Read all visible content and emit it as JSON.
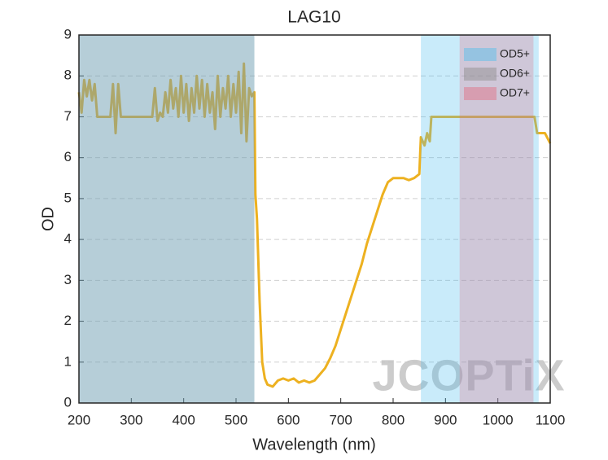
{
  "chart_data": {
    "type": "line",
    "title": "LAG10",
    "xlabel": "Wavelength (nm)",
    "ylabel": "OD",
    "xlim": [
      200,
      1100
    ],
    "xticks": [
      200,
      300,
      400,
      500,
      600,
      700,
      800,
      900,
      1000,
      1100
    ],
    "ylim": [
      0,
      9
    ],
    "yticks": [
      0,
      1,
      2,
      3,
      4,
      5,
      6,
      7,
      8,
      9
    ],
    "grid": true,
    "legend": "upper right",
    "watermark": "JCOPTiX",
    "bands": [
      {
        "name": "OD5+",
        "color": "#4dbeee",
        "ranges": [
          [
            200,
            535
          ],
          [
            853,
            1078
          ]
        ]
      },
      {
        "name": "OD6+",
        "color": "#8a8a8a",
        "ranges": [
          [
            200,
            535
          ]
        ]
      },
      {
        "name": "OD7+",
        "color": "#e06a80",
        "ranges": [
          [
            927,
            1068
          ]
        ]
      }
    ],
    "x": [
      200,
      205,
      210,
      215,
      220,
      225,
      230,
      235,
      250,
      260,
      265,
      270,
      275,
      280,
      300,
      320,
      340,
      345,
      350,
      355,
      360,
      365,
      370,
      375,
      380,
      385,
      390,
      395,
      400,
      405,
      410,
      415,
      420,
      425,
      430,
      435,
      440,
      445,
      450,
      455,
      460,
      465,
      470,
      475,
      480,
      485,
      490,
      495,
      500,
      505,
      510,
      515,
      520,
      525,
      530,
      535,
      537,
      540,
      545,
      550,
      555,
      560,
      570,
      580,
      590,
      600,
      610,
      620,
      630,
      640,
      650,
      660,
      670,
      680,
      690,
      700,
      710,
      720,
      730,
      740,
      750,
      760,
      770,
      780,
      790,
      800,
      810,
      820,
      830,
      840,
      850,
      853,
      860,
      865,
      870,
      873,
      900,
      950,
      1000,
      1050,
      1070,
      1075,
      1090,
      1100
    ],
    "series": [
      {
        "color": "#edb120",
        "values": [
          7.6,
          7.1,
          7.9,
          7.5,
          7.9,
          7.4,
          7.8,
          7.0,
          7.0,
          7.0,
          7.8,
          6.6,
          7.8,
          7.0,
          7.0,
          7.0,
          7.0,
          7.7,
          6.9,
          7.1,
          7.0,
          7.6,
          7.1,
          7.9,
          7.2,
          7.7,
          7.0,
          8.0,
          7.1,
          7.8,
          6.9,
          7.7,
          7.1,
          8.0,
          7.2,
          7.9,
          7.0,
          7.8,
          7.1,
          7.6,
          6.7,
          8.0,
          7.0,
          7.7,
          7.2,
          8.0,
          7.0,
          7.8,
          7.1,
          8.1,
          6.6,
          8.3,
          6.4,
          7.7,
          7.5,
          7.6,
          5.1,
          4.5,
          2.5,
          1.0,
          0.6,
          0.45,
          0.4,
          0.55,
          0.6,
          0.55,
          0.6,
          0.5,
          0.55,
          0.5,
          0.55,
          0.7,
          0.85,
          1.1,
          1.4,
          1.8,
          2.2,
          2.6,
          3.0,
          3.4,
          3.9,
          4.3,
          4.7,
          5.1,
          5.4,
          5.5,
          5.5,
          5.5,
          5.45,
          5.5,
          5.6,
          6.5,
          6.3,
          6.6,
          6.4,
          7.0,
          7.0,
          7.0,
          7.0,
          7.0,
          7.0,
          6.6,
          6.6,
          6.35
        ]
      }
    ]
  }
}
